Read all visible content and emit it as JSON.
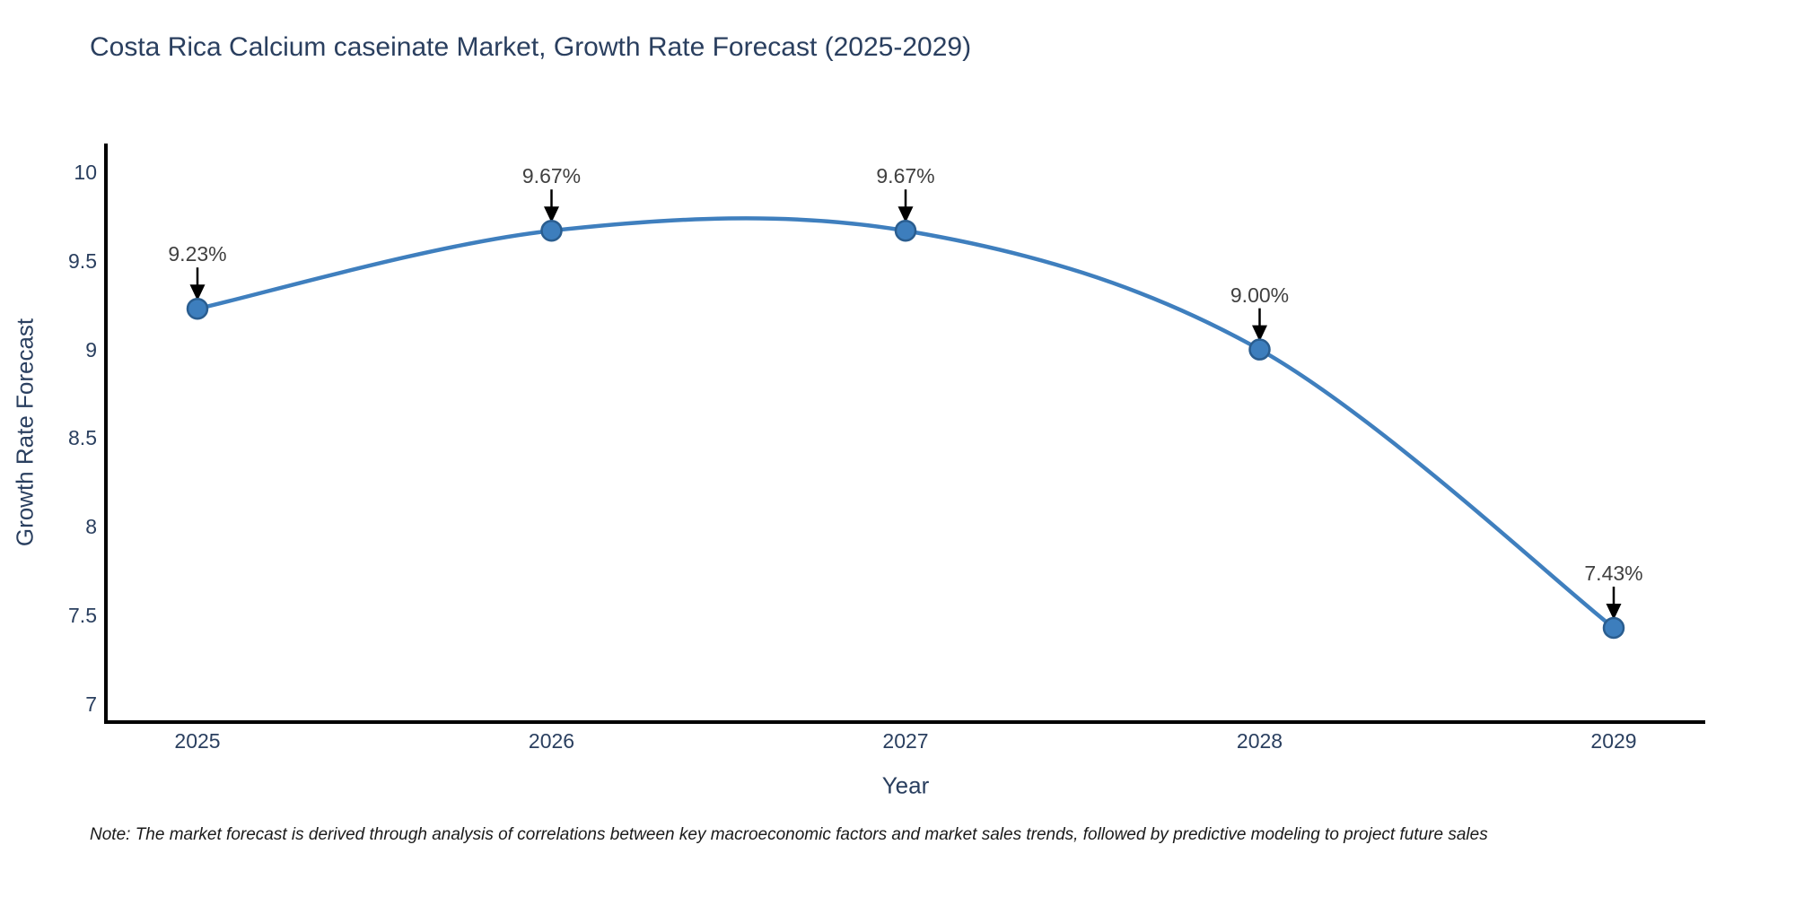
{
  "chart_data": {
    "type": "line",
    "title": "Costa Rica Calcium caseinate Market, Growth Rate Forecast (2025-2029)",
    "xlabel": "Year",
    "ylabel": "Growth Rate Forecast",
    "x": [
      2025,
      2026,
      2027,
      2028,
      2029
    ],
    "xtick_labels": [
      "2025",
      "2026",
      "2027",
      "2028",
      "2029"
    ],
    "values": [
      9.23,
      9.67,
      9.67,
      9.0,
      7.43
    ],
    "point_labels": [
      "9.23%",
      "9.67%",
      "9.67%",
      "9.00%",
      "7.43%"
    ],
    "yticks": [
      7,
      7.5,
      8,
      8.5,
      9,
      9.5,
      10
    ],
    "ytick_labels": [
      "7",
      "7.5",
      "8",
      "8.5",
      "9",
      "9.5",
      "10"
    ],
    "ylim": [
      7,
      10
    ],
    "grid": false,
    "legend": "none",
    "smoothing": "spline",
    "colors": {
      "line": "#3f7fbe",
      "marker_fill": "#3d7ebd",
      "marker_border": "#2a5d8f",
      "axis_line": "#000000",
      "axis_text": "#2a3f5f",
      "annotation_text": "#404040",
      "arrow": "#000000",
      "background": "#ffffff"
    },
    "note": "Note: The market forecast is derived through analysis of correlations between key macroeconomic factors and market sales trends, followed by predictive modeling to project future sales"
  }
}
